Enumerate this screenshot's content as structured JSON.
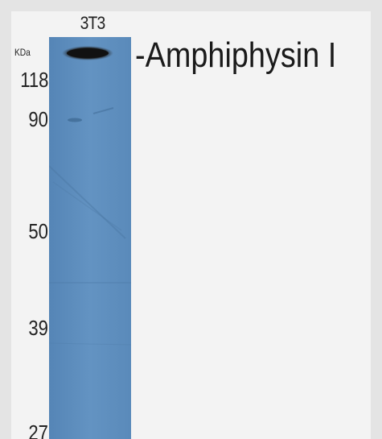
{
  "lane": {
    "label": "3T3"
  },
  "marker_unit": "KDa",
  "markers": [
    {
      "label": "118"
    },
    {
      "label": "90"
    },
    {
      "label": "50"
    },
    {
      "label": "39"
    },
    {
      "label": "27"
    }
  ],
  "band": {
    "label": "-Amphiphysin I"
  },
  "colors": {
    "background": "#f3f3f3",
    "border": "#e4e4e4",
    "membrane": "#5f8fbe",
    "band": "#141414",
    "text": "#222222"
  }
}
